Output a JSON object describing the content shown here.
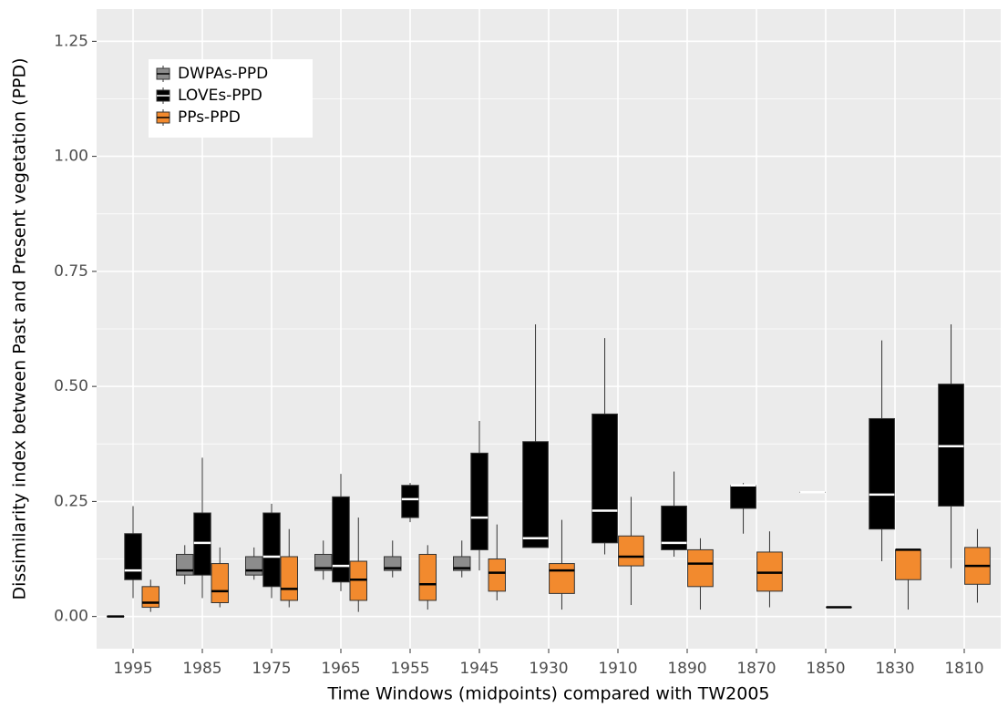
{
  "chart_data": {
    "type": "box",
    "x_label": "Time Windows (midpoints) compared with TW2005",
    "y_label": "Dissimilarity index between Past and Present vegetation (PPD)",
    "categories": [
      "1995",
      "1985",
      "1975",
      "1965",
      "1955",
      "1945",
      "1930",
      "1910",
      "1890",
      "1870",
      "1850",
      "1830",
      "1810"
    ],
    "ylim": [
      -0.07,
      1.32
    ],
    "yticks": [
      {
        "value": 0,
        "label": "0.00"
      },
      {
        "value": 0.25,
        "label": "0.25"
      },
      {
        "value": 0.5,
        "label": "0.50"
      },
      {
        "value": 0.75,
        "label": "0.75"
      },
      {
        "value": 1,
        "label": "1.00"
      },
      {
        "value": 1.25,
        "label": "1.25"
      }
    ],
    "grid": true,
    "legend": "top-left",
    "series": [
      {
        "name": "DWPAs-PPD",
        "color": "#8c8c8c",
        "median_color": "#000000",
        "values": [
          {
            "min": 0,
            "q1": 0,
            "median": 0,
            "q3": 0,
            "max": 0
          },
          {
            "min": 0.07,
            "q1": 0.09,
            "median": 0.1,
            "q3": 0.135,
            "max": 0.155
          },
          {
            "min": 0.08,
            "q1": 0.09,
            "median": 0.1,
            "q3": 0.13,
            "max": 0.15
          },
          {
            "min": 0.08,
            "q1": 0.1,
            "median": 0.105,
            "q3": 0.135,
            "max": 0.165
          },
          {
            "min": 0.085,
            "q1": 0.1,
            "median": 0.105,
            "q3": 0.13,
            "max": 0.165
          },
          {
            "min": 0.085,
            "q1": 0.1,
            "median": 0.105,
            "q3": 0.13,
            "max": 0.165
          },
          null,
          null,
          null,
          null,
          null,
          null,
          null
        ]
      },
      {
        "name": "LOVEs-PPD",
        "color": "#000000",
        "median_color": "#ffffff",
        "values": [
          {
            "min": 0.04,
            "q1": 0.08,
            "median": 0.1,
            "q3": 0.18,
            "max": 0.24
          },
          {
            "min": 0.04,
            "q1": 0.09,
            "median": 0.16,
            "q3": 0.225,
            "max": 0.345
          },
          {
            "min": 0.04,
            "q1": 0.065,
            "median": 0.13,
            "q3": 0.225,
            "max": 0.245
          },
          {
            "min": 0.055,
            "q1": 0.075,
            "median": 0.11,
            "q3": 0.26,
            "max": 0.31
          },
          {
            "min": 0.205,
            "q1": 0.215,
            "median": 0.255,
            "q3": 0.285,
            "max": 0.29
          },
          {
            "min": 0.1,
            "q1": 0.145,
            "median": 0.215,
            "q3": 0.355,
            "max": 0.425
          },
          {
            "min": 0.15,
            "q1": 0.15,
            "median": 0.17,
            "q3": 0.38,
            "max": 0.635
          },
          {
            "min": 0.135,
            "q1": 0.16,
            "median": 0.23,
            "q3": 0.44,
            "max": 0.605
          },
          {
            "min": 0.13,
            "q1": 0.145,
            "median": 0.16,
            "q3": 0.24,
            "max": 0.315
          },
          {
            "min": 0.18,
            "q1": 0.235,
            "median": 0.285,
            "q3": 0.285,
            "max": 0.29
          },
          {
            "min": 0.27,
            "q1": 0.27,
            "median": 0.27,
            "q3": 0.27,
            "max": 0.27
          },
          {
            "min": 0.12,
            "q1": 0.19,
            "median": 0.265,
            "q3": 0.43,
            "max": 0.6
          },
          {
            "min": 0.105,
            "q1": 0.24,
            "median": 0.37,
            "q3": 0.505,
            "max": 0.635
          }
        ]
      },
      {
        "name": "PPs-PPD",
        "color": "#f28a2e",
        "median_color": "#000000",
        "values": [
          {
            "min": 0.01,
            "q1": 0.02,
            "median": 0.03,
            "q3": 0.065,
            "max": 0.08
          },
          {
            "min": 0.02,
            "q1": 0.03,
            "median": 0.055,
            "q3": 0.115,
            "max": 0.15
          },
          {
            "min": 0.02,
            "q1": 0.035,
            "median": 0.06,
            "q3": 0.13,
            "max": 0.19
          },
          {
            "min": 0.01,
            "q1": 0.035,
            "median": 0.08,
            "q3": 0.12,
            "max": 0.215
          },
          {
            "min": 0.015,
            "q1": 0.035,
            "median": 0.07,
            "q3": 0.135,
            "max": 0.155
          },
          {
            "min": 0.035,
            "q1": 0.055,
            "median": 0.095,
            "q3": 0.125,
            "max": 0.2
          },
          {
            "min": 0.015,
            "q1": 0.05,
            "median": 0.1,
            "q3": 0.115,
            "max": 0.21
          },
          {
            "min": 0.025,
            "q1": 0.11,
            "median": 0.13,
            "q3": 0.175,
            "max": 0.26
          },
          {
            "min": 0.015,
            "q1": 0.065,
            "median": 0.115,
            "q3": 0.145,
            "max": 0.17
          },
          {
            "min": 0.02,
            "q1": 0.055,
            "median": 0.095,
            "q3": 0.14,
            "max": 0.185
          },
          {
            "min": 0.02,
            "q1": 0.02,
            "median": 0.02,
            "q3": 0.02,
            "max": 0.02
          },
          {
            "min": 0.015,
            "q1": 0.08,
            "median": 0.145,
            "q3": 0.145,
            "max": 0.145
          },
          {
            "min": 0.03,
            "q1": 0.07,
            "median": 0.11,
            "q3": 0.15,
            "max": 0.19
          }
        ]
      }
    ]
  }
}
